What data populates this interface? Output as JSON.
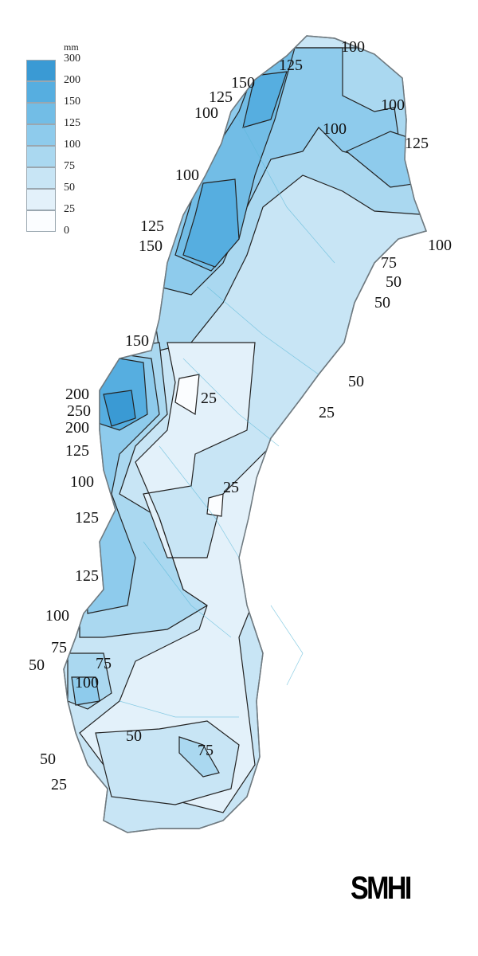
{
  "legend": {
    "unit": "mm",
    "labels": [
      "300",
      "200",
      "150",
      "125",
      "100",
      "75",
      "50",
      "25",
      "0"
    ],
    "colors": [
      "#3a9ad4",
      "#56aee0",
      "#72bde6",
      "#8ecbec",
      "#aad8f0",
      "#c8e5f5",
      "#e3f1fa",
      "#fbfdff"
    ]
  },
  "map": {
    "country": "Sweden",
    "outline_color": "#6f7a80",
    "contour_color": "#222222",
    "water_color": "#5bb8d8",
    "contour_labels": [
      "100",
      "125",
      "150",
      "125",
      "100",
      "100",
      "100",
      "125",
      "100",
      "125",
      "150",
      "100",
      "75",
      "50",
      "50",
      "150",
      "50",
      "25",
      "200",
      "250",
      "200",
      "25",
      "125",
      "100",
      "25",
      "125",
      "125",
      "100",
      "75",
      "50",
      "75",
      "100",
      "50",
      "75",
      "50",
      "25"
    ]
  },
  "logo": {
    "text": "SMHI"
  }
}
